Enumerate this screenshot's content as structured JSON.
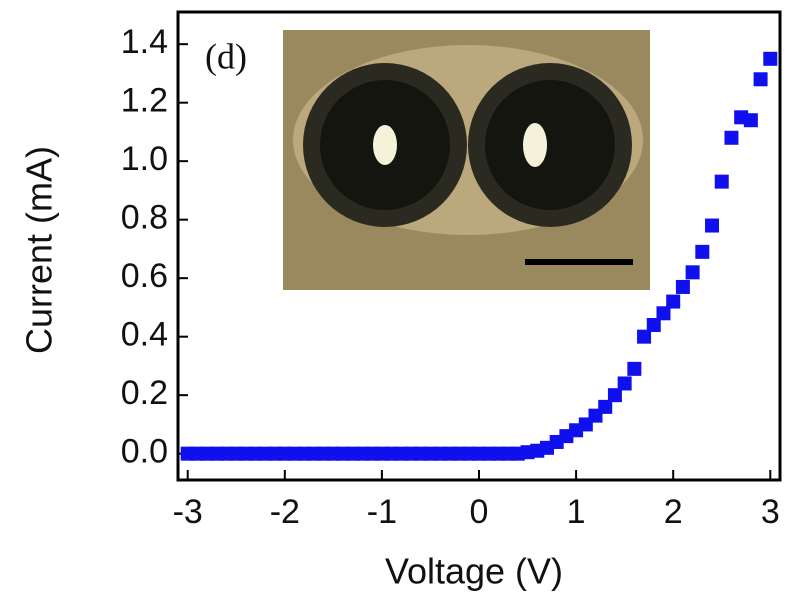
{
  "chart_data": {
    "type": "scatter",
    "label": "(d)",
    "xlabel": "Voltage (V)",
    "ylabel": "Current (mA)",
    "xlim": [
      -3.1,
      3.1
    ],
    "ylim": [
      -0.09,
      1.51
    ],
    "xticks": [
      -3,
      -2,
      -1,
      0,
      1,
      2,
      3
    ],
    "yticks": [
      {
        "value": 0,
        "label": "0.0"
      },
      {
        "value": 0.2,
        "label": "0.2"
      },
      {
        "value": 0.4,
        "label": "0.4"
      },
      {
        "value": 0.6,
        "label": "0.6"
      },
      {
        "value": 0.8,
        "label": "0.8"
      },
      {
        "value": 1.0,
        "label": "1.0"
      },
      {
        "value": 1.2,
        "label": "1.2"
      },
      {
        "value": 1.4,
        "label": "1.4"
      }
    ],
    "series": [
      {
        "color": "#1010ee",
        "x": [
          -3.0,
          -2.9,
          -2.8,
          -2.7,
          -2.6,
          -2.5,
          -2.4,
          -2.3,
          -2.2,
          -2.1,
          -2.0,
          -1.9,
          -1.8,
          -1.7,
          -1.6,
          -1.5,
          -1.4,
          -1.3,
          -1.2,
          -1.1,
          -1.0,
          -0.9,
          -0.8,
          -0.7,
          -0.6,
          -0.5,
          -0.4,
          -0.3,
          -0.2,
          -0.1,
          0.0,
          0.1,
          0.2,
          0.3,
          0.4,
          0.5,
          0.6,
          0.7,
          0.8,
          0.9,
          1.0,
          1.1,
          1.2,
          1.3,
          1.4,
          1.5,
          1.6,
          1.7,
          1.8,
          1.9,
          2.0,
          2.1,
          2.2,
          2.3,
          2.4,
          2.5,
          2.6,
          2.7,
          2.8,
          2.9,
          3.0
        ],
        "values": [
          0,
          0,
          0,
          0,
          0,
          0,
          0,
          0,
          0,
          0,
          0,
          0,
          0,
          0,
          0,
          0,
          0,
          0,
          0,
          0,
          0,
          0,
          0,
          0,
          0,
          0,
          0,
          0,
          0,
          0,
          0,
          0,
          0,
          0,
          0,
          0.005,
          0.01,
          0.02,
          0.04,
          0.06,
          0.08,
          0.1,
          0.13,
          0.16,
          0.2,
          0.24,
          0.29,
          0.4,
          0.44,
          0.48,
          0.52,
          0.57,
          0.62,
          0.69,
          0.78,
          0.93,
          1.08,
          1.15,
          1.14,
          1.28,
          1.35
        ]
      }
    ]
  }
}
